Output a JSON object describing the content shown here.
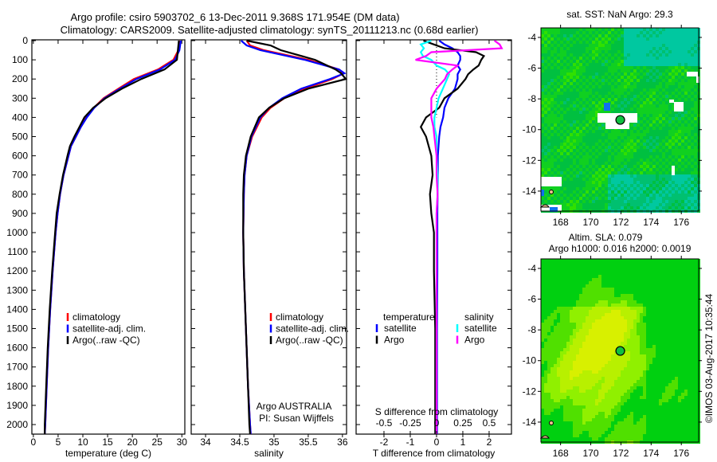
{
  "title_line1": "Argo profile: csiro 5903702_6 13-Dec-2011 9.368S 171.954E (DM data)",
  "title_line2": "Climatology: CARS2009. Satellite-adjusted climatology: synTS_20111213.nc (0.68d earlier)",
  "credit": "©IMOS 03-Aug-2017 10:35:44",
  "colors": {
    "climatology": "#ff0000",
    "satellite": "#0000ff",
    "argo": "#000000",
    "sal_satellite": "#00ffff",
    "sal_argo": "#ff00ff"
  },
  "chart_data": [
    {
      "type": "line",
      "id": "temperature",
      "xlabel": "temperature (deg C)",
      "ylabel": "depth",
      "xlim": [
        -0.3,
        30.6
      ],
      "ylim": [
        2072,
        0
      ],
      "xticks": [
        0,
        5,
        10,
        15,
        20,
        25,
        30
      ],
      "yticks": [
        0,
        100,
        200,
        300,
        400,
        500,
        600,
        700,
        800,
        900,
        1000,
        1100,
        1200,
        1300,
        1400,
        1500,
        1600,
        1700,
        1800,
        1900,
        2000
      ],
      "legend": [
        "climatology",
        "satellite-adj. clim.",
        "Argo(..raw -QC)"
      ],
      "depth": [
        0,
        50,
        100,
        150,
        200,
        250,
        300,
        350,
        400,
        450,
        500,
        550,
        600,
        700,
        800,
        900,
        1000,
        1200,
        1400,
        1600,
        1800,
        2000,
        2050
      ],
      "series": [
        {
          "name": "climatology",
          "values": [
            29.6,
            29.3,
            28.3,
            25.2,
            20.3,
            17.2,
            14.2,
            12.2,
            10.7,
            9.6,
            8.6,
            7.6,
            7.1,
            6.1,
            5.4,
            4.9,
            4.5,
            3.9,
            3.4,
            3.0,
            2.7,
            2.4,
            2.3
          ]
        },
        {
          "name": "satellite-adj. clim.",
          "values": [
            29.8,
            29.5,
            28.6,
            25.6,
            20.8,
            17.5,
            14.4,
            12.3,
            10.8,
            9.6,
            8.6,
            7.6,
            7.1,
            6.1,
            5.4,
            4.9,
            4.5,
            3.9,
            3.4,
            3.0,
            2.7,
            2.4,
            2.3
          ]
        },
        {
          "name": "Argo(..raw -QC)",
          "values": [
            29.4,
            29.2,
            29.0,
            26.5,
            21.8,
            17.9,
            14.6,
            12.1,
            10.3,
            9.3,
            8.3,
            7.4,
            6.9,
            6.0,
            5.3,
            4.7,
            4.4,
            3.8,
            3.3,
            2.9,
            2.6,
            2.3,
            2.3
          ]
        }
      ]
    },
    {
      "type": "line",
      "id": "salinity",
      "xlabel": "salinity",
      "xlim": [
        33.79,
        36.06
      ],
      "ylim": [
        2072,
        0
      ],
      "xticks": [
        34,
        34.5,
        35,
        35.5,
        36
      ],
      "xticklabels": [
        "34",
        "34.5",
        "35",
        "35.5",
        "36"
      ],
      "legend": [
        "climatology",
        "satellite-adj. clim.",
        "Argo(..raw -QC)"
      ],
      "annotation": [
        "Argo AUSTRALIA",
        "PI: Susan Wijffels"
      ],
      "depth": [
        0,
        25,
        50,
        100,
        150,
        170,
        200,
        250,
        300,
        350,
        400,
        500,
        600,
        700,
        800,
        1000,
        1200,
        1500,
        1800,
        2000,
        2050
      ],
      "series": [
        {
          "name": "climatology",
          "values": [
            34.6,
            34.65,
            34.85,
            35.5,
            35.95,
            36.02,
            35.85,
            35.45,
            35.15,
            34.95,
            34.82,
            34.68,
            34.6,
            34.57,
            34.56,
            34.55,
            34.56,
            34.59,
            34.62,
            34.65,
            34.66
          ]
        },
        {
          "name": "satellite-adj. clim.",
          "values": [
            34.52,
            34.6,
            34.8,
            35.45,
            35.95,
            36.03,
            35.82,
            35.4,
            35.12,
            34.93,
            34.8,
            34.67,
            34.6,
            34.57,
            34.56,
            34.55,
            34.56,
            34.59,
            34.62,
            34.65,
            34.66
          ]
        },
        {
          "name": "Argo(..raw -QC)",
          "values": [
            34.6,
            34.95,
            35.1,
            35.6,
            35.9,
            35.98,
            36.05,
            35.5,
            35.15,
            34.93,
            34.78,
            34.66,
            34.59,
            34.56,
            34.55,
            34.55,
            34.56,
            34.59,
            34.62,
            34.64,
            34.65
          ]
        }
      ]
    },
    {
      "type": "line",
      "id": "difference",
      "xlabel": "T difference from climatology",
      "xlabel2": "S difference from climatology",
      "xlim": [
        -3.06,
        2.85
      ],
      "xticks": [
        -2,
        -1,
        0,
        1,
        2
      ],
      "xticks2": [
        -0.5,
        -0.25,
        0,
        0.25,
        0.5
      ],
      "xticklabels2": [
        "-0.5",
        "-0.25",
        "0",
        "0.25",
        "0.5"
      ],
      "ylim": [
        2072,
        0
      ],
      "legend_temperature_title": "temperature",
      "legend_salinity_title": "salinity",
      "legend": [
        "satellite",
        "Argo",
        "satellite",
        "Argo"
      ],
      "depth": [
        0,
        20,
        40,
        60,
        80,
        100,
        130,
        150,
        175,
        200,
        250,
        300,
        350,
        400,
        450,
        500,
        600,
        700,
        800,
        900,
        1000,
        1200,
        1500,
        2000,
        2050
      ],
      "series": [
        {
          "name": "temperature satellite",
          "var": "T",
          "values": [
            0.1,
            0.3,
            0.6,
            0.8,
            0.9,
            0.9,
            0.8,
            0.9,
            0.8,
            0.8,
            0.7,
            0.45,
            0.3,
            0.25,
            0.15,
            0.1,
            0.05,
            0.05,
            0.04,
            0.03,
            0.03,
            0.03,
            0.02,
            0.02,
            0.02
          ]
        },
        {
          "name": "temperature Argo",
          "var": "T",
          "values": [
            -0.5,
            -0.1,
            0.3,
            1.5,
            1.8,
            1.7,
            1.6,
            1.4,
            1.2,
            1.1,
            0.8,
            0.3,
            0.1,
            -0.4,
            -0.6,
            -0.4,
            -0.2,
            -0.15,
            -0.25,
            -0.2,
            -0.1,
            -0.1,
            -0.05,
            -0.05,
            -0.05
          ]
        },
        {
          "name": "salinity satellite",
          "var": "S",
          "values": [
            -0.05,
            -0.15,
            -0.12,
            -0.15,
            -0.13,
            -0.05,
            0.0,
            0.08,
            0.12,
            0.1,
            0.06,
            0.02,
            0.0,
            -0.02,
            -0.02,
            0.0,
            0.0,
            0.01,
            0.01,
            0.0,
            0.0,
            0.0,
            0.0,
            0.0,
            0.0
          ]
        },
        {
          "name": "salinity Argo",
          "var": "S",
          "values": [
            0.55,
            0.6,
            0.62,
            -0.05,
            -0.1,
            -0.2,
            0.2,
            0.15,
            0.1,
            0.08,
            0.0,
            -0.05,
            -0.05,
            -0.05,
            -0.03,
            -0.02,
            0.0,
            0.0,
            0.01,
            0.0,
            0.0,
            0.0,
            0.0,
            0.0,
            0.0
          ]
        }
      ]
    },
    {
      "type": "heatmap",
      "id": "sst-map",
      "title": "sat. SST: NaN Argo: 29.3",
      "xlim": [
        166.7,
        177.15
      ],
      "ylim": [
        -15.3,
        -3.38
      ],
      "xticks": [
        168,
        170,
        172,
        174,
        176
      ],
      "yticks": [
        -4,
        -6,
        -8,
        -10,
        -12,
        -14
      ],
      "float_position": {
        "lon": 171.954,
        "lat": -9.368
      }
    },
    {
      "type": "heatmap",
      "id": "sla-map",
      "title": "Altim. SLA: 0.079",
      "subtitle": "Argo h1000: 0.016 h2000: 0.0019",
      "xlim": [
        166.7,
        177.15
      ],
      "ylim": [
        -15.3,
        -3.38
      ],
      "xticks": [
        168,
        170,
        172,
        174,
        176
      ],
      "yticks": [
        -4,
        -6,
        -8,
        -10,
        -12,
        -14
      ],
      "float_position": {
        "lon": 171.954,
        "lat": -9.368
      }
    }
  ]
}
